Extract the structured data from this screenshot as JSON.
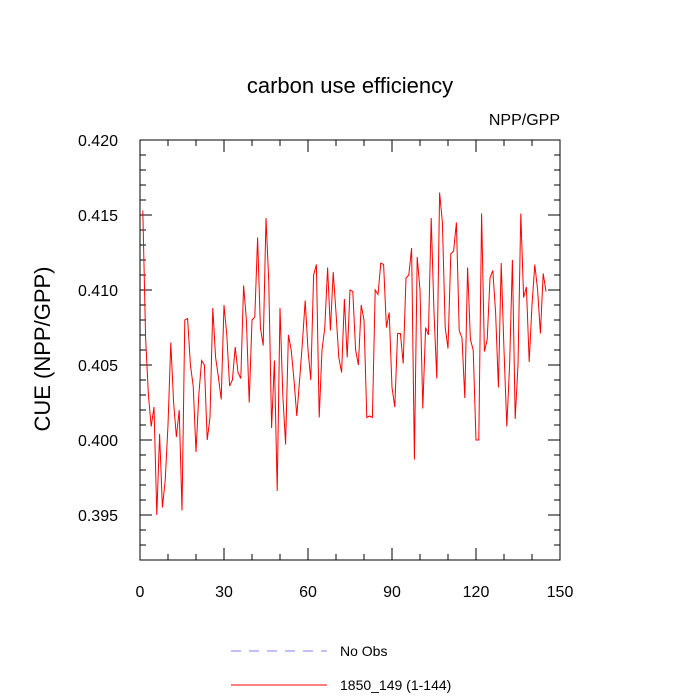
{
  "chart_data": {
    "type": "line",
    "title": "carbon use efficiency",
    "subtitle": "NPP/GPP",
    "xlabel": "",
    "ylabel": "CUE  (NPP/GPP)",
    "xlim": [
      0,
      150
    ],
    "ylim": [
      0.392,
      0.42
    ],
    "xticks": [
      0,
      30,
      60,
      90,
      120,
      150
    ],
    "xtick_labels": [
      "0",
      "30",
      "60",
      "90",
      "120",
      "150"
    ],
    "yticks": [
      0.395,
      0.4,
      0.405,
      0.41,
      0.415,
      0.42
    ],
    "ytick_labels": [
      "0.395",
      "0.400",
      "0.405",
      "0.410",
      "0.415",
      "0.420"
    ],
    "grid": false,
    "legend_position": "bottom",
    "legend": [
      {
        "label": "No Obs",
        "style": "dashed",
        "color": "#8080ff"
      },
      {
        "label": "1850_149 (1-144)",
        "style": "solid",
        "color": "#ff0000"
      }
    ],
    "series": [
      {
        "name": "1850_149 (1-144)",
        "color": "#ff0000",
        "x": [
          1,
          2,
          3,
          4,
          5,
          6,
          7,
          8,
          9,
          10,
          11,
          12,
          13,
          14,
          15,
          16,
          17,
          18,
          19,
          20,
          21,
          22,
          23,
          24,
          25,
          26,
          27,
          28,
          29,
          30,
          31,
          32,
          33,
          34,
          35,
          36,
          37,
          38,
          39,
          40,
          41,
          42,
          43,
          44,
          45,
          46,
          47,
          48,
          49,
          50,
          51,
          52,
          53,
          54,
          55,
          56,
          57,
          58,
          59,
          60,
          61,
          62,
          63,
          64,
          65,
          66,
          67,
          68,
          69,
          70,
          71,
          72,
          73,
          74,
          75,
          76,
          77,
          78,
          79,
          80,
          81,
          82,
          83,
          84,
          85,
          86,
          87,
          88,
          89,
          90,
          91,
          92,
          93,
          94,
          95,
          96,
          97,
          98,
          99,
          100,
          101,
          102,
          103,
          104,
          105,
          106,
          107,
          108,
          109,
          110,
          111,
          112,
          113,
          114,
          115,
          116,
          117,
          118,
          119,
          120,
          121,
          122,
          123,
          124,
          125,
          126,
          127,
          128,
          129,
          130,
          131,
          132,
          133,
          134,
          135,
          136,
          137,
          138,
          139,
          140,
          141,
          142,
          143,
          144,
          145
        ],
        "values": [
          0.4153,
          0.4068,
          0.403,
          0.4009,
          0.4022,
          0.395,
          0.4004,
          0.3955,
          0.3973,
          0.401,
          0.4065,
          0.4025,
          0.4002,
          0.402,
          0.3953,
          0.408,
          0.4081,
          0.405,
          0.4036,
          0.3992,
          0.403,
          0.4053,
          0.405,
          0.4,
          0.4015,
          0.4088,
          0.4055,
          0.4042,
          0.4027,
          0.409,
          0.407,
          0.4036,
          0.404,
          0.4062,
          0.4045,
          0.4041,
          0.4103,
          0.408,
          0.4025,
          0.408,
          0.4082,
          0.4135,
          0.4075,
          0.4063,
          0.4148,
          0.4105,
          0.4008,
          0.4053,
          0.3966,
          0.4088,
          0.403,
          0.3997,
          0.407,
          0.406,
          0.404,
          0.4016,
          0.404,
          0.4065,
          0.4093,
          0.406,
          0.404,
          0.411,
          0.4117,
          0.4015,
          0.406,
          0.4075,
          0.4115,
          0.4073,
          0.4112,
          0.4085,
          0.4055,
          0.4045,
          0.4094,
          0.4055,
          0.41,
          0.4099,
          0.406,
          0.405,
          0.409,
          0.408,
          0.4015,
          0.4016,
          0.4015,
          0.41,
          0.4097,
          0.4118,
          0.4117,
          0.4075,
          0.4085,
          0.4035,
          0.4022,
          0.4071,
          0.4071,
          0.4051,
          0.4108,
          0.411,
          0.4128,
          0.3987,
          0.4122,
          0.41,
          0.4021,
          0.4075,
          0.407,
          0.4148,
          0.4085,
          0.4041,
          0.4165,
          0.4145,
          0.4075,
          0.4061,
          0.4124,
          0.4126,
          0.4145,
          0.4073,
          0.4068,
          0.4028,
          0.4115,
          0.4067,
          0.406,
          0.4,
          0.4,
          0.4151,
          0.4059,
          0.4067,
          0.4108,
          0.4113,
          0.4085,
          0.4035,
          0.4118,
          0.406,
          0.4009,
          0.405,
          0.412,
          0.4014,
          0.405,
          0.4151,
          0.4095,
          0.4102,
          0.4052,
          0.409,
          0.4117,
          0.41,
          0.4071,
          0.4111,
          0.4099
        ]
      }
    ]
  }
}
